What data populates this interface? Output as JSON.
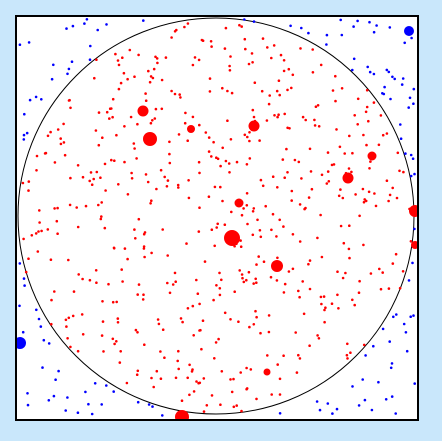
{
  "app": {
    "title": ""
  },
  "colors": {
    "background": "#c9e7fb",
    "frame": "#000000",
    "canvas": "#ffffff",
    "inside_points": "#ff0000",
    "outside_points": "#0000ff",
    "circle_outline": "#000000"
  },
  "scene": {
    "shape": "circle-inscribed-in-square",
    "inside_count": 560,
    "outside_count": 130,
    "large_inside_markers": 13,
    "large_outside_markers": 2
  }
}
